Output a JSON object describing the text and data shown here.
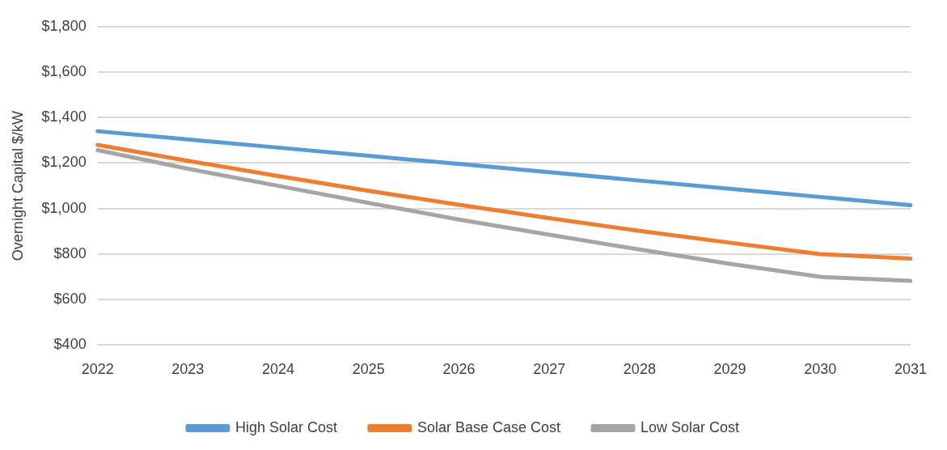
{
  "chart_data": {
    "type": "line",
    "ylabel": "Overnight Capital $/kW",
    "categories": [
      "2022",
      "2023",
      "2024",
      "2025",
      "2026",
      "2027",
      "2028",
      "2029",
      "2030",
      "2031"
    ],
    "series": [
      {
        "name": "High Solar Cost",
        "color": "#5b9bd5",
        "values": [
          1340,
          1304,
          1268,
          1232,
          1196,
          1160,
          1123,
          1087,
          1051,
          1015
        ]
      },
      {
        "name": "Solar Base Case Cost",
        "color": "#ed7d31",
        "values": [
          1280,
          1210,
          1143,
          1078,
          1017,
          958,
          902,
          850,
          800,
          780
        ]
      },
      {
        "name": "Low Solar Cost",
        "color": "#a5a5a5",
        "values": [
          1257,
          1175,
          1100,
          1025,
          952,
          885,
          820,
          757,
          700,
          682
        ]
      }
    ],
    "ylim": [
      400,
      1800
    ],
    "yticks": [
      {
        "value": 400,
        "label": "$400"
      },
      {
        "value": 600,
        "label": "$600"
      },
      {
        "value": 800,
        "label": "$800"
      },
      {
        "value": 1000,
        "label": "$1,000"
      },
      {
        "value": 1200,
        "label": "$1,200"
      },
      {
        "value": 1400,
        "label": "$1,400"
      },
      {
        "value": 1600,
        "label": "$1,600"
      },
      {
        "value": 1800,
        "label": "$1,800"
      }
    ],
    "grid": "y",
    "legend": "bottom",
    "marker": "none",
    "line_style": "solid"
  }
}
